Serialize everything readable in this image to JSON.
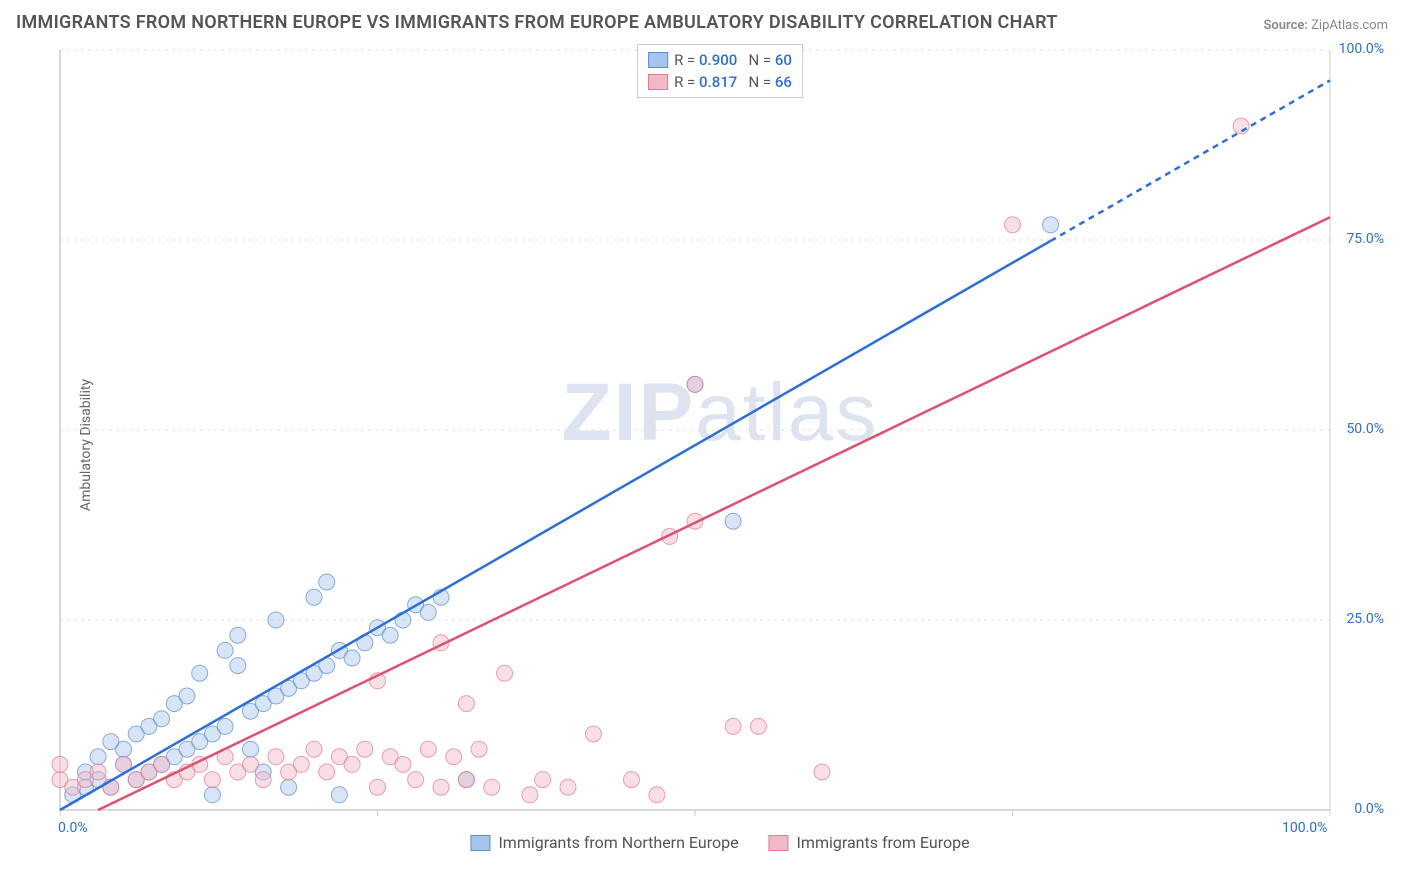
{
  "title": "IMMIGRANTS FROM NORTHERN EUROPE VS IMMIGRANTS FROM EUROPE AMBULATORY DISABILITY CORRELATION CHART",
  "source_label": "Source:",
  "source_value": "ZipAtlas.com",
  "watermark_bold": "ZIP",
  "watermark_rest": "atlas",
  "y_axis_label": "Ambulatory Disability",
  "chart": {
    "type": "scatter",
    "background_color": "#ffffff",
    "grid_color": "#e0e0e0",
    "axis_color": "#cccccc",
    "xlim": [
      0,
      100
    ],
    "ylim": [
      0,
      100
    ],
    "x_ticks": [
      0,
      25,
      50,
      75,
      100
    ],
    "y_ticks": [
      0,
      25,
      50,
      75,
      100
    ],
    "x_tick_labels": [
      "0.0%",
      "",
      "",
      "",
      "100.0%"
    ],
    "y_tick_labels": [
      "0.0%",
      "25.0%",
      "50.0%",
      "75.0%",
      "100.0%"
    ],
    "tick_label_color": "#2c6fd8",
    "tick_label_fontsize": 14,
    "marker_radius": 8,
    "marker_opacity": 0.45,
    "series": [
      {
        "name": "Immigrants from Northern Europe",
        "color_fill": "#a6c5ec",
        "color_stroke": "#5b8dd6",
        "r_value": "0.900",
        "n_value": "60",
        "trend_line": {
          "x1": 0,
          "y1": 0,
          "x2": 100,
          "y2": 96,
          "solid_until_x": 78,
          "color": "#2c6fd8",
          "width": 2.5
        },
        "points": [
          [
            1,
            2
          ],
          [
            2,
            3
          ],
          [
            3,
            4
          ],
          [
            2,
            5
          ],
          [
            4,
            3
          ],
          [
            5,
            6
          ],
          [
            3,
            7
          ],
          [
            6,
            4
          ],
          [
            5,
            8
          ],
          [
            7,
            5
          ],
          [
            4,
            9
          ],
          [
            8,
            6
          ],
          [
            6,
            10
          ],
          [
            9,
            7
          ],
          [
            7,
            11
          ],
          [
            10,
            8
          ],
          [
            8,
            12
          ],
          [
            11,
            9
          ],
          [
            9,
            14
          ],
          [
            12,
            10
          ],
          [
            10,
            15
          ],
          [
            13,
            11
          ],
          [
            11,
            18
          ],
          [
            14,
            19
          ],
          [
            12,
            2
          ],
          [
            15,
            13
          ],
          [
            13,
            21
          ],
          [
            16,
            14
          ],
          [
            14,
            23
          ],
          [
            17,
            15
          ],
          [
            15,
            8
          ],
          [
            18,
            16
          ],
          [
            16,
            5
          ],
          [
            19,
            17
          ],
          [
            17,
            25
          ],
          [
            20,
            18
          ],
          [
            18,
            3
          ],
          [
            21,
            19
          ],
          [
            22,
            21
          ],
          [
            20,
            28
          ],
          [
            23,
            20
          ],
          [
            24,
            22
          ],
          [
            25,
            24
          ],
          [
            21,
            30
          ],
          [
            26,
            23
          ],
          [
            27,
            25
          ],
          [
            28,
            27
          ],
          [
            22,
            2
          ],
          [
            29,
            26
          ],
          [
            30,
            28
          ],
          [
            32,
            4
          ],
          [
            50,
            56
          ],
          [
            53,
            38
          ],
          [
            78,
            77
          ]
        ]
      },
      {
        "name": "Immigrants from Europe",
        "color_fill": "#f1b8c6",
        "color_stroke": "#e07a96",
        "r_value": "0.817",
        "n_value": "66",
        "trend_line": {
          "x1": 3,
          "y1": 0,
          "x2": 100,
          "y2": 78,
          "solid_until_x": 100,
          "color": "#e0506f",
          "width": 2.5
        },
        "points": [
          [
            0,
            4
          ],
          [
            0,
            6
          ],
          [
            1,
            3
          ],
          [
            2,
            4
          ],
          [
            3,
            5
          ],
          [
            4,
            3
          ],
          [
            5,
            6
          ],
          [
            6,
            4
          ],
          [
            7,
            5
          ],
          [
            8,
            6
          ],
          [
            9,
            4
          ],
          [
            10,
            5
          ],
          [
            11,
            6
          ],
          [
            12,
            4
          ],
          [
            13,
            7
          ],
          [
            14,
            5
          ],
          [
            15,
            6
          ],
          [
            16,
            4
          ],
          [
            17,
            7
          ],
          [
            18,
            5
          ],
          [
            19,
            6
          ],
          [
            20,
            8
          ],
          [
            21,
            5
          ],
          [
            22,
            7
          ],
          [
            23,
            6
          ],
          [
            24,
            8
          ],
          [
            25,
            3
          ],
          [
            26,
            7
          ],
          [
            27,
            6
          ],
          [
            28,
            4
          ],
          [
            29,
            8
          ],
          [
            30,
            3
          ],
          [
            31,
            7
          ],
          [
            32,
            4
          ],
          [
            33,
            8
          ],
          [
            34,
            3
          ],
          [
            25,
            17
          ],
          [
            30,
            22
          ],
          [
            32,
            14
          ],
          [
            35,
            18
          ],
          [
            37,
            2
          ],
          [
            38,
            4
          ],
          [
            40,
            3
          ],
          [
            42,
            10
          ],
          [
            45,
            4
          ],
          [
            47,
            2
          ],
          [
            50,
            38
          ],
          [
            53,
            11
          ],
          [
            55,
            11
          ],
          [
            48,
            36
          ],
          [
            50,
            56
          ],
          [
            60,
            5
          ],
          [
            75,
            77
          ],
          [
            93,
            90
          ]
        ]
      }
    ],
    "legend": {
      "r_label": "R =",
      "n_label": "N ="
    },
    "x_legend_items": [
      {
        "label": "Immigrants from Northern Europe",
        "fill": "#a6c5ec",
        "stroke": "#5b8dd6"
      },
      {
        "label": "Immigrants from Europe",
        "fill": "#f1b8c6",
        "stroke": "#e07a96"
      }
    ]
  }
}
